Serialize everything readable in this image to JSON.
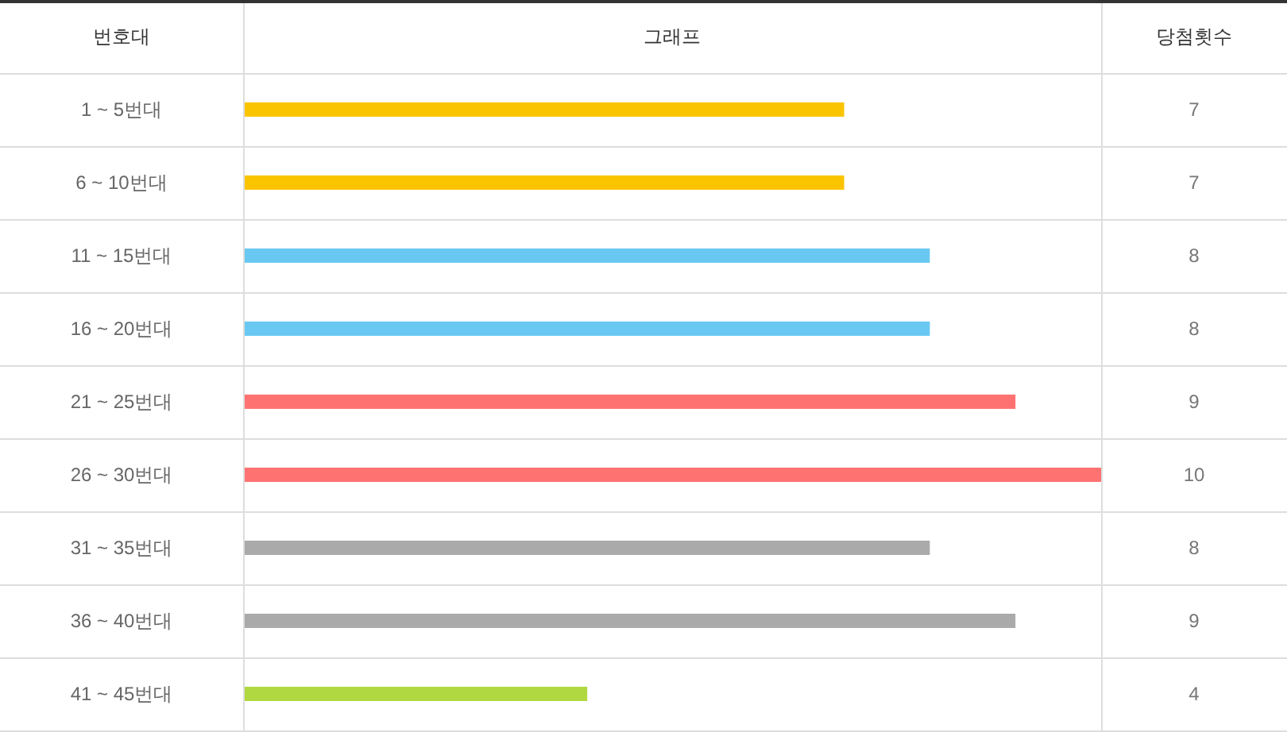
{
  "chart_data": {
    "type": "bar",
    "orientation": "horizontal",
    "ylabel": "번호대",
    "xlabel": "그래프",
    "annotations": [
      "당첨횟수"
    ],
    "categories": [
      "1 ~ 5번대",
      "6 ~ 10번대",
      "11 ~ 15번대",
      "16 ~ 20번대",
      "21 ~ 25번대",
      "26 ~ 30번대",
      "31 ~ 35번대",
      "36 ~ 40번대",
      "41 ~ 45번대"
    ],
    "values": [
      7,
      7,
      8,
      8,
      9,
      10,
      8,
      9,
      4
    ],
    "colors": [
      "#fbc400",
      "#fbc400",
      "#69c8f2",
      "#69c8f2",
      "#ff7272",
      "#ff7272",
      "#aaaaaa",
      "#aaaaaa",
      "#b0d840"
    ],
    "xlim": [
      0,
      10
    ],
    "tick_labels": "y",
    "data_labels": true
  }
}
